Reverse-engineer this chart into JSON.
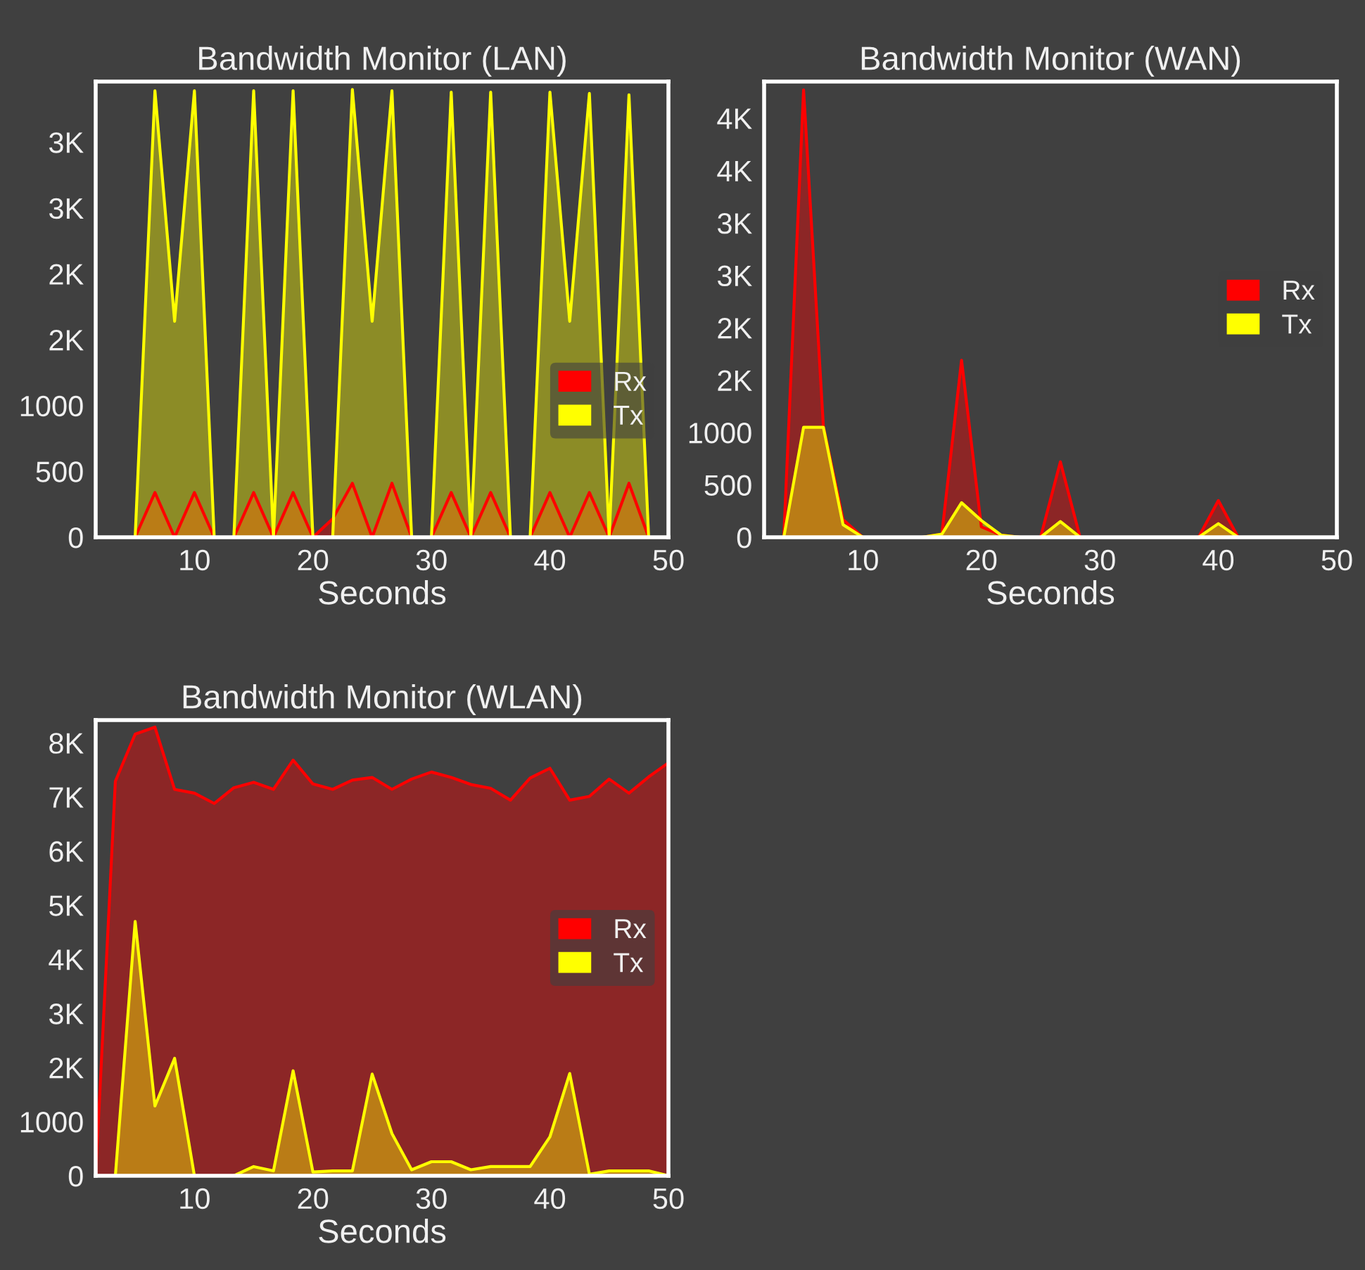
{
  "chart_data": [
    {
      "type": "area",
      "title": "Bandwidth Monitor (LAN)",
      "xlabel": "Seconds",
      "legend": "right",
      "grid": false,
      "x": [
        1.67,
        3.33,
        5,
        6.67,
        8.33,
        10,
        11.67,
        13.33,
        15,
        16.67,
        18.33,
        20,
        21.67,
        23.33,
        25,
        26.67,
        28.33,
        30,
        31.67,
        33.33,
        35,
        36.67,
        38.33,
        40,
        41.67,
        43.33,
        45,
        46.67,
        48.33,
        50
      ],
      "xlim": [
        1.67,
        50
      ],
      "xticks": [
        10,
        20,
        30,
        40,
        50
      ],
      "ylim": [
        0,
        3460
      ],
      "yticks": [
        0,
        500,
        1000,
        {
          "value": 1500,
          "label": "2K"
        },
        {
          "value": 2000,
          "label": "2K"
        },
        {
          "value": 2500,
          "label": "3K"
        },
        {
          "value": 3000,
          "label": "3K"
        }
      ],
      "series": [
        {
          "name": "Rx",
          "color": "#ff0000",
          "values": [
            0,
            0,
            0,
            340,
            0,
            340,
            0,
            0,
            340,
            0,
            340,
            0,
            140,
            410,
            0,
            410,
            0,
            0,
            340,
            0,
            340,
            0,
            0,
            340,
            0,
            340,
            0,
            410,
            0,
            0
          ]
        },
        {
          "name": "Tx",
          "color": "#ffff00",
          "values": [
            0,
            0,
            0,
            3390,
            1640,
            3390,
            0,
            0,
            3390,
            0,
            3390,
            0,
            0,
            3400,
            1640,
            3390,
            0,
            0,
            3380,
            0,
            3380,
            0,
            0,
            3380,
            1640,
            3370,
            0,
            3360,
            0,
            0
          ]
        }
      ]
    },
    {
      "type": "area",
      "title": "Bandwidth Monitor (WAN)",
      "xlabel": "Seconds",
      "legend": "right",
      "grid": false,
      "x": [
        1.67,
        3.33,
        5,
        6.67,
        8.33,
        10,
        11.67,
        13.33,
        15,
        16.67,
        18.33,
        20,
        21.67,
        23.33,
        25,
        26.67,
        28.33,
        30,
        31.67,
        33.33,
        35,
        36.67,
        38.33,
        40,
        41.67,
        43.33,
        45,
        46.67,
        48.33,
        50
      ],
      "xlim": [
        1.67,
        50
      ],
      "xticks": [
        10,
        20,
        30,
        40,
        50
      ],
      "ylim": [
        0,
        4350
      ],
      "yticks": [
        0,
        500,
        1000,
        {
          "value": 1500,
          "label": "2K"
        },
        {
          "value": 2000,
          "label": "2K"
        },
        {
          "value": 2500,
          "label": "3K"
        },
        {
          "value": 3000,
          "label": "3K"
        },
        {
          "value": 3500,
          "label": "4K"
        },
        {
          "value": 4000,
          "label": "4K"
        }
      ],
      "series": [
        {
          "name": "Rx",
          "color": "#ff0000",
          "values": [
            0,
            0,
            4270,
            1060,
            170,
            0,
            0,
            0,
            0,
            30,
            1690,
            100,
            20,
            0,
            0,
            720,
            0,
            0,
            0,
            0,
            0,
            0,
            0,
            350,
            0,
            0,
            0,
            0,
            0,
            0
          ]
        },
        {
          "name": "Tx",
          "color": "#ffff00",
          "values": [
            0,
            0,
            1050,
            1050,
            120,
            0,
            0,
            0,
            0,
            30,
            330,
            160,
            20,
            0,
            0,
            150,
            0,
            0,
            0,
            0,
            0,
            0,
            0,
            130,
            0,
            0,
            0,
            0,
            0,
            0
          ]
        }
      ]
    },
    {
      "type": "area",
      "title": "Bandwidth Monitor (WLAN)",
      "xlabel": "Seconds",
      "legend": "right",
      "grid": false,
      "x": [
        1.67,
        3.33,
        5,
        6.67,
        8.33,
        10,
        11.67,
        13.33,
        15,
        16.67,
        18.33,
        20,
        21.67,
        23.33,
        25,
        26.67,
        28.33,
        30,
        31.67,
        33.33,
        35,
        36.67,
        38.33,
        40,
        41.67,
        43.33,
        45,
        46.67,
        48.33,
        50
      ],
      "xlim": [
        1.67,
        50
      ],
      "xticks": [
        10,
        20,
        30,
        40,
        50
      ],
      "ylim": [
        0,
        8420
      ],
      "yticks": [
        0,
        1000,
        {
          "value": 2000,
          "label": "2K"
        },
        {
          "value": 3000,
          "label": "3K"
        },
        {
          "value": 4000,
          "label": "4K"
        },
        {
          "value": 5000,
          "label": "5K"
        },
        {
          "value": 6000,
          "label": "6K"
        },
        {
          "value": 7000,
          "label": "7K"
        },
        {
          "value": 8000,
          "label": "8K"
        }
      ],
      "series": [
        {
          "name": "Rx",
          "color": "#ff0000",
          "values": [
            0,
            7290,
            8160,
            8290,
            7140,
            7070,
            6880,
            7170,
            7270,
            7140,
            7680,
            7240,
            7140,
            7310,
            7360,
            7140,
            7330,
            7460,
            7360,
            7230,
            7160,
            6940,
            7350,
            7530,
            6940,
            7010,
            7330,
            7070,
            7370,
            7630
          ]
        },
        {
          "name": "Tx",
          "color": "#ffff00",
          "values": [
            0,
            0,
            4700,
            1290,
            2170,
            0,
            0,
            0,
            170,
            90,
            1940,
            70,
            90,
            90,
            1880,
            780,
            110,
            260,
            260,
            110,
            170,
            170,
            170,
            720,
            1890,
            30,
            90,
            90,
            90,
            0
          ]
        }
      ]
    }
  ]
}
